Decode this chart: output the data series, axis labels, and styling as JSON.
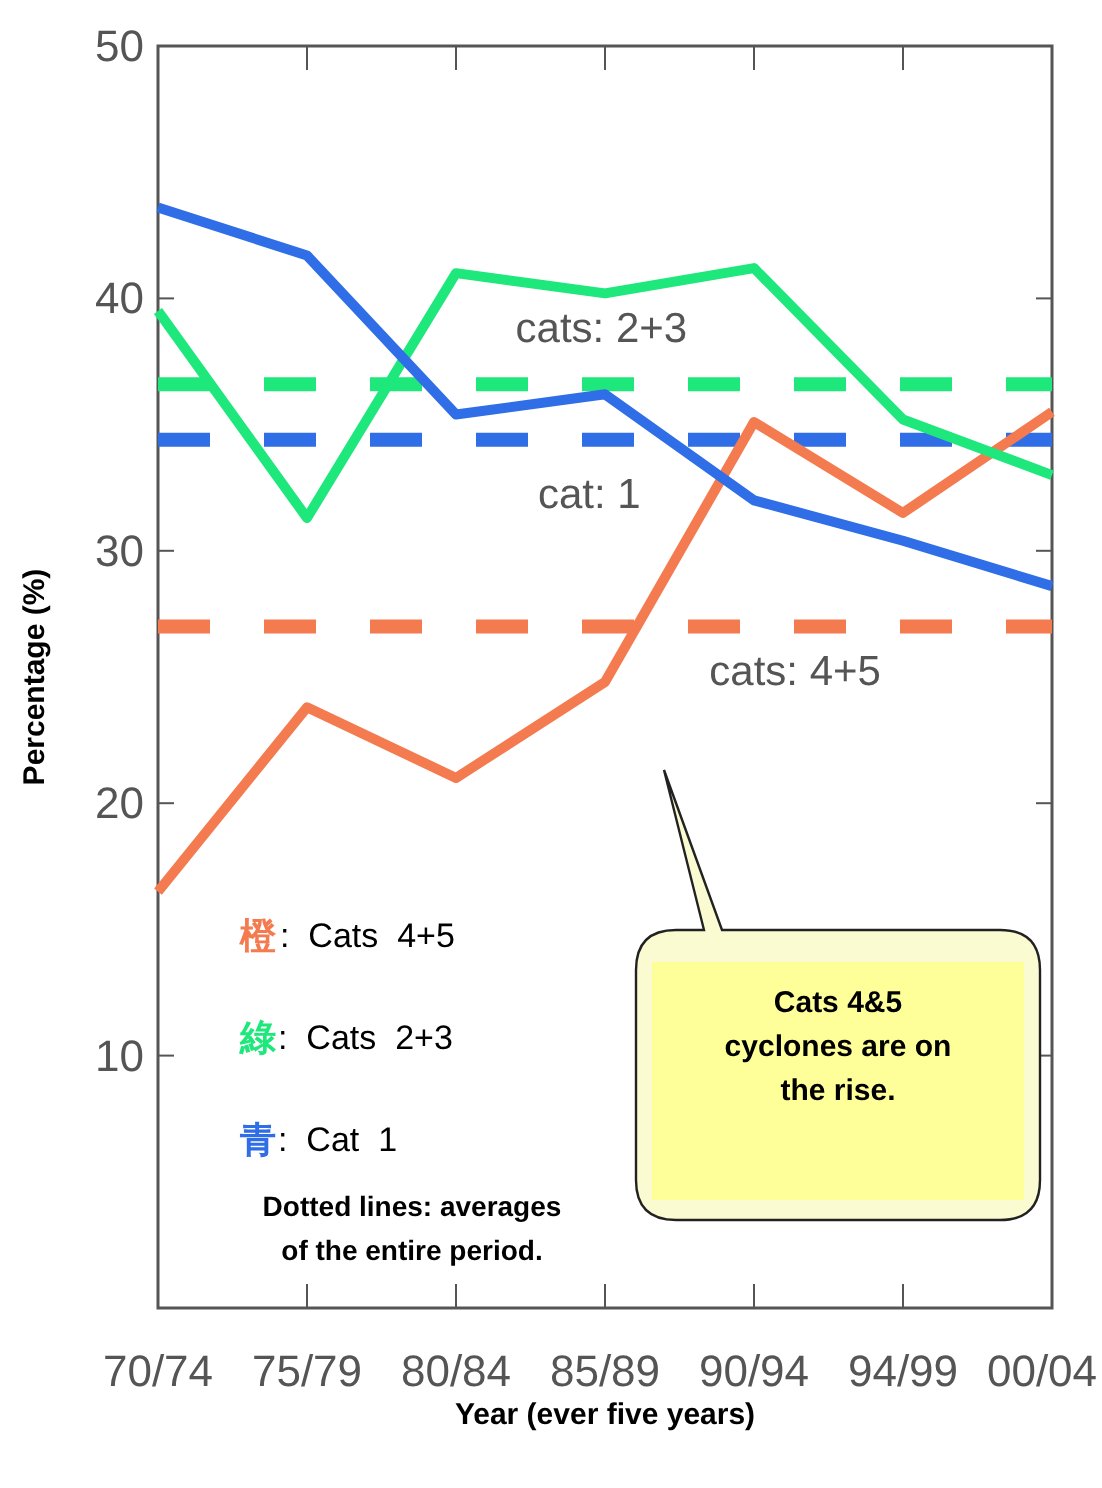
{
  "chart_data": {
    "type": "line",
    "xlabel": "Year (ever five years)",
    "ylabel": "Percentage (%)",
    "categories": [
      "70/74",
      "75/79",
      "80/84",
      "85/89",
      "90/94",
      "94/99",
      "00/04"
    ],
    "ylim": [
      0,
      50
    ],
    "yticks": [
      10,
      20,
      30,
      40,
      50
    ],
    "grid": false,
    "legend": "bottom left",
    "marker": "none",
    "line_style": "solid",
    "series": [
      {
        "name": "橙:  Cats 4+5",
        "color": "#f47a50",
        "values": [
          16.5,
          23.8,
          21.0,
          24.8,
          35.1,
          31.5,
          35.5
        ]
      },
      {
        "name": "綠:  Cats 2+3",
        "color": "#1ee87c",
        "values": [
          39.5,
          31.3,
          41.0,
          40.2,
          41.2,
          35.2,
          33.0
        ]
      },
      {
        "name": "青:  Cat 1",
        "color": "#2f6ee6",
        "values": [
          43.6,
          41.7,
          35.4,
          36.2,
          32.0,
          30.4,
          28.6
        ]
      }
    ],
    "ref_lines": [
      {
        "axis": "y",
        "value": 36.6,
        "color": "#1ee87c",
        "line_style": "dashed"
      },
      {
        "axis": "y",
        "value": 34.4,
        "color": "#2f6ee6",
        "line_style": "dashed"
      },
      {
        "axis": "y",
        "value": 27.0,
        "color": "#f47a50",
        "line_style": "dashed"
      }
    ],
    "annotations": [
      "Cats 4&5 cyclones are on the rise.",
      "Dotted lines: averages of the entire period.",
      "cats: 2+3",
      "cat: 1",
      "cats: 4+5"
    ]
  }
}
